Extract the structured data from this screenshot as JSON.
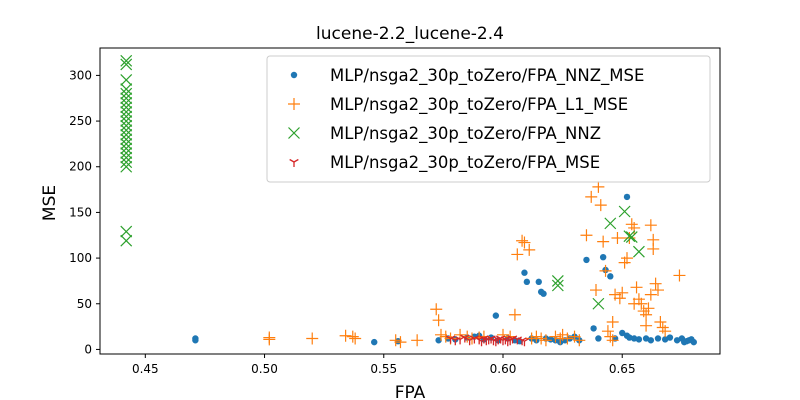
{
  "chart_data": {
    "type": "scatter",
    "title": "lucene-2.2_lucene-2.4",
    "xlabel": "FPA",
    "ylabel": "MSE",
    "xlim": [
      0.431,
      0.691
    ],
    "ylim": [
      -5,
      330
    ],
    "xticks": [
      0.45,
      0.5,
      0.55,
      0.6,
      0.65
    ],
    "xtick_labels": [
      "0.45",
      "0.50",
      "0.55",
      "0.60",
      "0.65"
    ],
    "yticks": [
      0,
      50,
      100,
      150,
      200,
      250,
      300
    ],
    "ytick_labels": [
      "0",
      "50",
      "100",
      "150",
      "200",
      "250",
      "300"
    ],
    "grid": false,
    "legend_position": "top-right",
    "series": [
      {
        "name": "MLP/nsga2_30p_toZero/FPA_NNZ_MSE",
        "marker": "dot",
        "color": "#1f77b4",
        "points": [
          [
            0.471,
            10
          ],
          [
            0.471,
            12
          ],
          [
            0.546,
            8
          ],
          [
            0.556,
            9
          ],
          [
            0.573,
            10
          ],
          [
            0.577,
            12
          ],
          [
            0.58,
            11
          ],
          [
            0.585,
            13
          ],
          [
            0.588,
            14
          ],
          [
            0.59,
            15
          ],
          [
            0.592,
            11
          ],
          [
            0.595,
            13
          ],
          [
            0.597,
            37
          ],
          [
            0.598,
            10
          ],
          [
            0.602,
            12
          ],
          [
            0.605,
            10
          ],
          [
            0.607,
            9
          ],
          [
            0.609,
            84
          ],
          [
            0.61,
            74
          ],
          [
            0.612,
            12
          ],
          [
            0.614,
            10
          ],
          [
            0.615,
            74
          ],
          [
            0.616,
            63
          ],
          [
            0.617,
            61
          ],
          [
            0.618,
            12
          ],
          [
            0.62,
            11
          ],
          [
            0.622,
            10
          ],
          [
            0.624,
            8
          ],
          [
            0.626,
            10
          ],
          [
            0.628,
            12
          ],
          [
            0.63,
            14
          ],
          [
            0.632,
            10
          ],
          [
            0.635,
            98
          ],
          [
            0.638,
            23
          ],
          [
            0.64,
            12
          ],
          [
            0.642,
            101
          ],
          [
            0.643,
            87
          ],
          [
            0.645,
            80
          ],
          [
            0.647,
            12
          ],
          [
            0.65,
            18
          ],
          [
            0.652,
            167
          ],
          [
            0.652,
            15
          ],
          [
            0.653,
            13
          ],
          [
            0.655,
            12
          ],
          [
            0.657,
            11
          ],
          [
            0.66,
            12
          ],
          [
            0.662,
            10
          ],
          [
            0.665,
            12
          ],
          [
            0.668,
            11
          ],
          [
            0.67,
            13
          ],
          [
            0.673,
            10
          ],
          [
            0.675,
            12
          ],
          [
            0.676,
            8
          ],
          [
            0.677,
            9
          ],
          [
            0.678,
            10
          ],
          [
            0.679,
            11
          ],
          [
            0.68,
            8
          ]
        ]
      },
      {
        "name": "MLP/nsga2_30p_toZero/FPA_L1_MSE",
        "marker": "plus",
        "color": "#ff7f0e",
        "points": [
          [
            0.502,
            13
          ],
          [
            0.502,
            11
          ],
          [
            0.52,
            12
          ],
          [
            0.534,
            15
          ],
          [
            0.537,
            14
          ],
          [
            0.538,
            12
          ],
          [
            0.555,
            10
          ],
          [
            0.557,
            8
          ],
          [
            0.564,
            10
          ],
          [
            0.572,
            44
          ],
          [
            0.573,
            32
          ],
          [
            0.574,
            16
          ],
          [
            0.576,
            14
          ],
          [
            0.578,
            12
          ],
          [
            0.582,
            16
          ],
          [
            0.585,
            14
          ],
          [
            0.587,
            12
          ],
          [
            0.59,
            13
          ],
          [
            0.592,
            14
          ],
          [
            0.6,
            16
          ],
          [
            0.603,
            14
          ],
          [
            0.605,
            38
          ],
          [
            0.606,
            104
          ],
          [
            0.608,
            119
          ],
          [
            0.609,
            117
          ],
          [
            0.611,
            109
          ],
          [
            0.612,
            12
          ],
          [
            0.614,
            14
          ],
          [
            0.616,
            12
          ],
          [
            0.618,
            10
          ],
          [
            0.622,
            14
          ],
          [
            0.624,
            12
          ],
          [
            0.625,
            16
          ],
          [
            0.627,
            12
          ],
          [
            0.63,
            14
          ],
          [
            0.632,
            10
          ],
          [
            0.635,
            125
          ],
          [
            0.637,
            167
          ],
          [
            0.639,
            65
          ],
          [
            0.64,
            178
          ],
          [
            0.641,
            158
          ],
          [
            0.642,
            118
          ],
          [
            0.643,
            86
          ],
          [
            0.644,
            20
          ],
          [
            0.645,
            14
          ],
          [
            0.646,
            10
          ],
          [
            0.647,
            60
          ],
          [
            0.648,
            122
          ],
          [
            0.649,
            56
          ],
          [
            0.65,
            62
          ],
          [
            0.651,
            95
          ],
          [
            0.652,
            100
          ],
          [
            0.653,
            122
          ],
          [
            0.654,
            137
          ],
          [
            0.655,
            133
          ],
          [
            0.656,
            68
          ],
          [
            0.657,
            55
          ],
          [
            0.658,
            50
          ],
          [
            0.659,
            42
          ],
          [
            0.66,
            38
          ],
          [
            0.661,
            45
          ],
          [
            0.662,
            136
          ],
          [
            0.663,
            120
          ],
          [
            0.663,
            110
          ],
          [
            0.664,
            72
          ],
          [
            0.665,
            65
          ],
          [
            0.666,
            30
          ],
          [
            0.667,
            24
          ],
          [
            0.668,
            20
          ],
          [
            0.674,
            81
          ],
          [
            0.662,
            60
          ],
          [
            0.66,
            26
          ],
          [
            0.655,
            50
          ],
          [
            0.646,
            30
          ]
        ]
      },
      {
        "name": "MLP/nsga2_30p_toZero/FPA_NNZ",
        "marker": "x",
        "color": "#2ca02c",
        "points": [
          [
            0.442,
            316
          ],
          [
            0.442,
            312
          ],
          [
            0.442,
            295
          ],
          [
            0.442,
            285
          ],
          [
            0.442,
            280
          ],
          [
            0.442,
            275
          ],
          [
            0.442,
            270
          ],
          [
            0.442,
            265
          ],
          [
            0.442,
            260
          ],
          [
            0.442,
            255
          ],
          [
            0.442,
            250
          ],
          [
            0.442,
            245
          ],
          [
            0.442,
            240
          ],
          [
            0.442,
            235
          ],
          [
            0.442,
            230
          ],
          [
            0.442,
            225
          ],
          [
            0.442,
            220
          ],
          [
            0.442,
            215
          ],
          [
            0.442,
            210
          ],
          [
            0.442,
            205
          ],
          [
            0.442,
            200
          ],
          [
            0.442,
            129
          ],
          [
            0.442,
            119
          ],
          [
            0.623,
            75
          ],
          [
            0.623,
            70
          ],
          [
            0.64,
            50
          ],
          [
            0.645,
            138
          ],
          [
            0.651,
            151
          ],
          [
            0.653,
            124
          ],
          [
            0.654,
            123
          ],
          [
            0.657,
            107
          ]
        ]
      },
      {
        "name": "MLP/nsga2_30p_toZero/FPA_MSE",
        "marker": "tri_down",
        "color": "#d62728",
        "points": [
          [
            0.578,
            12
          ],
          [
            0.58,
            10
          ],
          [
            0.582,
            11
          ],
          [
            0.584,
            13
          ],
          [
            0.586,
            10
          ],
          [
            0.588,
            12
          ],
          [
            0.59,
            11
          ],
          [
            0.591,
            9
          ],
          [
            0.592,
            12
          ],
          [
            0.593,
            10
          ],
          [
            0.594,
            11
          ],
          [
            0.595,
            12
          ],
          [
            0.596,
            10
          ],
          [
            0.597,
            9
          ],
          [
            0.598,
            11
          ],
          [
            0.599,
            12
          ],
          [
            0.6,
            10
          ],
          [
            0.601,
            11
          ],
          [
            0.602,
            9
          ],
          [
            0.603,
            10
          ],
          [
            0.604,
            12
          ],
          [
            0.606,
            11
          ],
          [
            0.608,
            10
          ],
          [
            0.609,
            9
          ]
        ]
      }
    ]
  }
}
